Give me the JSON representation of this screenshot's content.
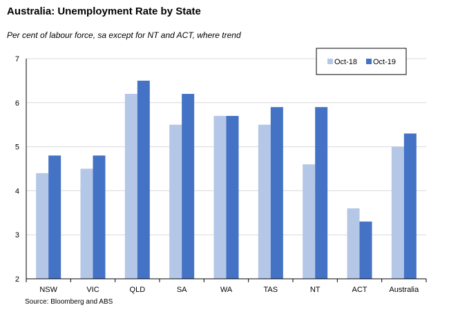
{
  "chart_data": {
    "type": "bar",
    "title": "Australia: Unemployment Rate by State",
    "subtitle": "Per cent of labour force, sa except for NT and ACT, where trend",
    "source": "Source: Bloomberg and ABS",
    "categories": [
      "NSW",
      "VIC",
      "QLD",
      "SA",
      "WA",
      "TAS",
      "NT",
      "ACT",
      "Australia"
    ],
    "series": [
      {
        "name": "Oct-18",
        "color": "#b4c7e7",
        "values": [
          4.4,
          4.5,
          6.2,
          5.5,
          5.7,
          5.5,
          4.6,
          3.6,
          5.0
        ]
      },
      {
        "name": "Oct-19",
        "color": "#4472c4",
        "values": [
          4.8,
          4.8,
          6.5,
          6.2,
          5.7,
          5.9,
          5.9,
          3.3,
          5.3
        ]
      }
    ],
    "ylim": [
      2,
      7
    ],
    "yticks": [
      2,
      3,
      4,
      5,
      6,
      7
    ],
    "grid": true,
    "legend": "top-right",
    "xlabel": "",
    "ylabel": ""
  }
}
